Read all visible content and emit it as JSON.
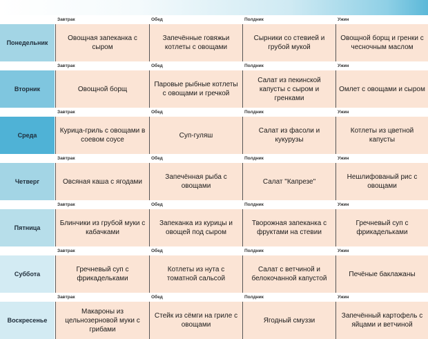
{
  "header_labels": [
    "Завтрак",
    "Обед",
    "Полдник",
    "Ужин"
  ],
  "colors": {
    "day_light": "#a8d8e6",
    "day_medium": "#6fc1dc",
    "day_dark": "#4fb2d6",
    "day_pale": "#d5ecf3",
    "cell_bg": "#fbe4d5"
  },
  "days": [
    {
      "name": "Понедельник",
      "shade": "#a3d5e5",
      "meals": [
        "Овощная запеканка с сыром",
        "Запечённые говяжьи котлеты с овощами",
        "Сырники со стевией и грубой мукой",
        "Овощной борщ и гренки с чесночным маслом"
      ]
    },
    {
      "name": "Вторник",
      "shade": "#7fc6df",
      "meals": [
        "Овощной борщ",
        "Паровые рыбные котлеты с овощами и гречкой",
        "Салат из пекинской капусты с сыром и гренками",
        "Омлет с овощами и сыром"
      ]
    },
    {
      "name": "Среда",
      "shade": "#4fb2d6",
      "meals": [
        "Курица-гриль с овощами в соевом соусе",
        "Суп-гуляш",
        "Салат из фасоли и кукурузы",
        "Котлеты из цветной капусты"
      ]
    },
    {
      "name": "Четверг",
      "shade": "#a3d5e5",
      "meals": [
        "Овсяная каша с ягодами",
        "Запечённая рыба с овощами",
        "Салат \"Капрезе\"",
        "Нешлифованый рис с овощами"
      ]
    },
    {
      "name": "Пятница",
      "shade": "#b7deea",
      "meals": [
        "Блинчики из грубой муки с кабачками",
        "Запеканка из курицы и овощей под сыром",
        "Творожная запеканка с фруктами на стевии",
        "Гречневый суп с фрикадельками"
      ]
    },
    {
      "name": "Суббота",
      "shade": "#d3ebf3",
      "meals": [
        "Гречневый суп с фрикадельками",
        "Котлеты из нута с томатной сальсой",
        "Салат с ветчиной и белокочанной капустой",
        "Печёные баклажаны"
      ]
    },
    {
      "name": "Воскресенье",
      "shade": "#d3ebf3",
      "meals": [
        "Макароны из цельнозерновой муки с грибами",
        "Стейк из сёмги на гриле с овощами",
        "Ягодный смуззи",
        "Запечённый картофель с яйцами и ветчиной"
      ]
    }
  ]
}
